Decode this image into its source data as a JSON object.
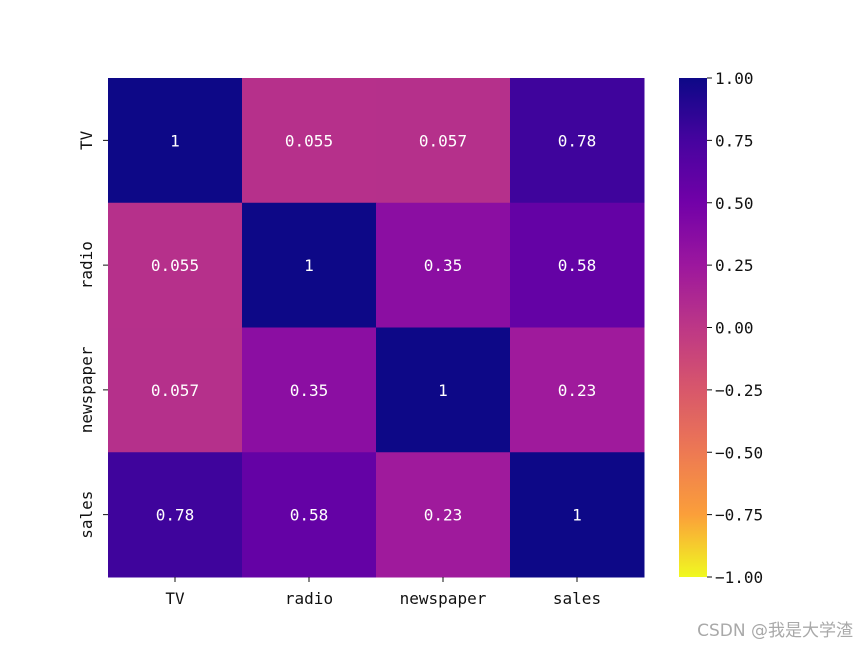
{
  "chart_data": {
    "type": "heatmap",
    "rows": [
      "TV",
      "radio",
      "newspaper",
      "sales"
    ],
    "columns": [
      "TV",
      "radio",
      "newspaper",
      "sales"
    ],
    "values": [
      [
        1.0,
        0.055,
        0.057,
        0.78
      ],
      [
        0.055,
        1.0,
        0.35,
        0.58
      ],
      [
        0.057,
        0.35,
        1.0,
        0.23
      ],
      [
        0.78,
        0.58,
        0.23,
        1.0
      ]
    ],
    "annotations": [
      [
        "1",
        "0.055",
        "0.057",
        "0.78"
      ],
      [
        "0.055",
        "1",
        "0.35",
        "0.58"
      ],
      [
        "0.057",
        "0.35",
        "1",
        "0.23"
      ],
      [
        "0.78",
        "0.58",
        "0.23",
        "1"
      ]
    ],
    "colormap": "plasma_r",
    "vmin": -1.0,
    "vmax": 1.0,
    "colorbar": {
      "ticks": [
        1.0,
        0.75,
        0.5,
        0.25,
        0.0,
        -0.25,
        -0.5,
        -0.75,
        -1.0
      ],
      "tick_labels": [
        "1.00",
        "0.75",
        "0.50",
        "0.25",
        "0.00",
        "−0.25",
        "−0.50",
        "−0.75",
        "−1.00"
      ]
    },
    "title": "",
    "xlabel": "",
    "ylabel": ""
  },
  "watermark": "CSDN @我是大学渣"
}
